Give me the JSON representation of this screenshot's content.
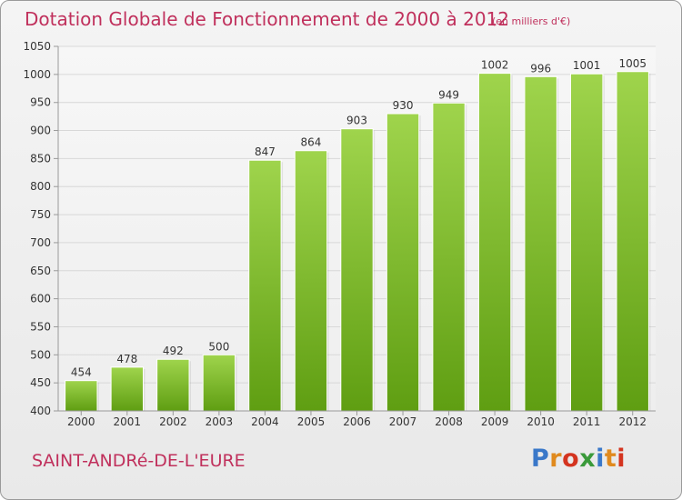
{
  "header": {
    "title": "Dotation Globale de Fonctionnement de 2000 à 2012",
    "unit": "(en milliers d'€)"
  },
  "footer": {
    "commune": "SAINT-ANDRé-DE-L'EURE",
    "brand": {
      "text": "Proxiti",
      "letters": [
        {
          "char": "P",
          "color": "#3a78c9"
        },
        {
          "char": "r",
          "color": "#e08a1e"
        },
        {
          "char": "o",
          "color": "#d4341f"
        },
        {
          "char": "x",
          "color": "#3a9a3a"
        },
        {
          "char": "i",
          "color": "#3a78c9"
        },
        {
          "char": "t",
          "color": "#e08a1e"
        },
        {
          "char": "i",
          "color": "#d4341f"
        }
      ]
    }
  },
  "colors": {
    "accent": "#c0305c",
    "bar_top": "#9fd44c",
    "bar_bottom": "#5f9e12",
    "grid": "#d8d8d8",
    "axis": "#999999",
    "text": "#333333"
  },
  "chart_data": {
    "type": "bar",
    "title": "Dotation Globale de Fonctionnement de 2000 à 2012",
    "subtitle": "(en milliers d'€)",
    "categories": [
      "2000",
      "2001",
      "2002",
      "2003",
      "2004",
      "2005",
      "2006",
      "2007",
      "2008",
      "2009",
      "2010",
      "2011",
      "2012"
    ],
    "values": [
      454,
      478,
      492,
      500,
      847,
      864,
      903,
      930,
      949,
      1002,
      996,
      1001,
      1005
    ],
    "data_labels": [
      "454",
      "478",
      "492",
      "500",
      "847",
      "864",
      "903",
      "930",
      "949",
      "1002",
      "996",
      "1001",
      "1005"
    ],
    "ylim": [
      400,
      1050
    ],
    "yticks": [
      400,
      450,
      500,
      550,
      600,
      650,
      700,
      750,
      800,
      850,
      900,
      950,
      1000,
      1050
    ],
    "grid": true,
    "legend": "none",
    "xlabel": "",
    "ylabel": ""
  }
}
